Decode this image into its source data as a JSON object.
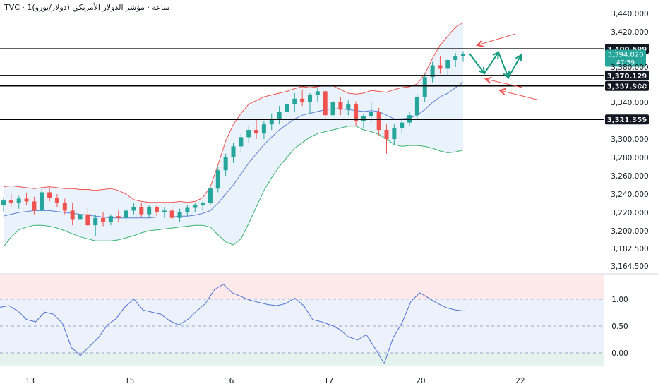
{
  "header": {
    "title": "TVC · 1ساعة · مؤشر الدولار الأمريكي (دولار/يورو)"
  },
  "colors": {
    "up": "#26a69a",
    "down": "#ef5350",
    "upper_band": "#ef5350",
    "mid_band": "#5b7fd6",
    "lower_band": "#39b46e",
    "band_fill": "#eaf2fc",
    "level_line": "#000000",
    "arrow_green": "#159b7f",
    "arrow_red": "#ef5350",
    "osc_line": "#4a6fd1"
  },
  "chart_data": [
    {
      "type": "candlestick",
      "title": "",
      "ylim": [
        3164.5,
        3440
      ],
      "y_ticks": [
        "3,440.000",
        "3,420.000",
        "3,380.000",
        "3,360.000",
        "3,340.000",
        "3,320.000",
        "3,300.000",
        "3,280.000",
        "3,260.000",
        "3,240.000",
        "3,220.000",
        "3,200.000",
        "3,182.500",
        "3,164.500"
      ],
      "x_tick_labels": [
        {
          "label": "13",
          "index": 3
        },
        {
          "label": "15",
          "index": 16
        },
        {
          "label": "16",
          "index": 29
        },
        {
          "label": "17",
          "index": 42
        },
        {
          "label": "20",
          "index": 54
        },
        {
          "label": "22",
          "index": 67
        }
      ],
      "levels": [
        {
          "value": 3400.699,
          "label": "3,400.699"
        },
        {
          "value": 3370.129,
          "label": "3,370.129"
        },
        {
          "value": 3357.9,
          "label": "3,357.900"
        },
        {
          "value": 3321.359,
          "label": "3,321.359"
        }
      ],
      "current_price": {
        "value": 3394.82,
        "label": "3,394.820",
        "countdown": "47:59"
      },
      "candles": [
        [
          3228,
          3236,
          3220,
          3233
        ],
        [
          3233,
          3240,
          3226,
          3230
        ],
        [
          3230,
          3238,
          3224,
          3235
        ],
        [
          3235,
          3241,
          3228,
          3232
        ],
        [
          3232,
          3237,
          3218,
          3222
        ],
        [
          3222,
          3246,
          3220,
          3242
        ],
        [
          3242,
          3248,
          3232,
          3236
        ],
        [
          3236,
          3240,
          3226,
          3230
        ],
        [
          3230,
          3235,
          3218,
          3222
        ],
        [
          3222,
          3230,
          3206,
          3212
        ],
        [
          3212,
          3222,
          3200,
          3218
        ],
        [
          3218,
          3226,
          3205,
          3206
        ],
        [
          3206,
          3218,
          3195,
          3214
        ],
        [
          3214,
          3220,
          3205,
          3210
        ],
        [
          3210,
          3218,
          3206,
          3216
        ],
        [
          3216,
          3222,
          3210,
          3214
        ],
        [
          3214,
          3226,
          3210,
          3222
        ],
        [
          3222,
          3230,
          3218,
          3226
        ],
        [
          3226,
          3230,
          3215,
          3218
        ],
        [
          3218,
          3228,
          3214,
          3226
        ],
        [
          3226,
          3228,
          3216,
          3220
        ],
        [
          3220,
          3226,
          3214,
          3222
        ],
        [
          3222,
          3226,
          3212,
          3214
        ],
        [
          3214,
          3224,
          3210,
          3220
        ],
        [
          3220,
          3228,
          3216,
          3225
        ],
        [
          3225,
          3230,
          3220,
          3228
        ],
        [
          3228,
          3232,
          3222,
          3230
        ],
        [
          3230,
          3248,
          3228,
          3246
        ],
        [
          3246,
          3270,
          3242,
          3266
        ],
        [
          3266,
          3284,
          3260,
          3280
        ],
        [
          3280,
          3296,
          3274,
          3292
        ],
        [
          3292,
          3306,
          3286,
          3302
        ],
        [
          3302,
          3315,
          3296,
          3310
        ],
        [
          3310,
          3322,
          3300,
          3306
        ],
        [
          3306,
          3320,
          3300,
          3316
        ],
        [
          3316,
          3328,
          3310,
          3322
        ],
        [
          3322,
          3336,
          3316,
          3330
        ],
        [
          3330,
          3344,
          3324,
          3338
        ],
        [
          3338,
          3350,
          3330,
          3344
        ],
        [
          3344,
          3354,
          3336,
          3340
        ],
        [
          3340,
          3350,
          3328,
          3348
        ],
        [
          3348,
          3356,
          3340,
          3352
        ],
        [
          3352,
          3354,
          3322,
          3326
        ],
        [
          3326,
          3344,
          3320,
          3340
        ],
        [
          3340,
          3346,
          3326,
          3332
        ],
        [
          3332,
          3342,
          3326,
          3338
        ],
        [
          3338,
          3341,
          3314,
          3320
        ],
        [
          3320,
          3328,
          3312,
          3325
        ],
        [
          3325,
          3340,
          3318,
          3330
        ],
        [
          3330,
          3334,
          3304,
          3310
        ],
        [
          3310,
          3316,
          3284,
          3300
        ],
        [
          3300,
          3316,
          3294,
          3312
        ],
        [
          3312,
          3322,
          3306,
          3318
        ],
        [
          3318,
          3330,
          3314,
          3326
        ],
        [
          3326,
          3348,
          3322,
          3346
        ],
        [
          3346,
          3372,
          3340,
          3368
        ],
        [
          3368,
          3386,
          3362,
          3382
        ],
        [
          3382,
          3392,
          3372,
          3378
        ],
        [
          3378,
          3390,
          3370,
          3388
        ],
        [
          3388,
          3396,
          3380,
          3392
        ],
        [
          3392,
          3398,
          3386,
          3395
        ]
      ],
      "bands": {
        "upper": [
          3248,
          3249,
          3248,
          3247,
          3246,
          3247,
          3248,
          3247,
          3246,
          3246,
          3245,
          3245,
          3244,
          3245,
          3246,
          3244,
          3240,
          3234,
          3232,
          3231,
          3231,
          3231,
          3231,
          3232,
          3231,
          3232,
          3236,
          3248,
          3272,
          3298,
          3316,
          3328,
          3338,
          3342,
          3346,
          3348,
          3350,
          3352,
          3355,
          3357,
          3356,
          3357,
          3359,
          3358,
          3354,
          3350,
          3349,
          3350,
          3353,
          3352,
          3351,
          3354,
          3356,
          3357,
          3360,
          3372,
          3390,
          3405,
          3415,
          3425,
          3430
        ],
        "middle": [
          3216,
          3218,
          3220,
          3221,
          3222,
          3222,
          3222,
          3221,
          3220,
          3219,
          3218,
          3217,
          3216,
          3215,
          3214,
          3214,
          3214,
          3214,
          3214,
          3214,
          3215,
          3215,
          3215,
          3216,
          3216,
          3217,
          3219,
          3222,
          3230,
          3240,
          3250,
          3262,
          3274,
          3284,
          3294,
          3302,
          3310,
          3316,
          3322,
          3326,
          3328,
          3330,
          3332,
          3333,
          3333,
          3332,
          3331,
          3330,
          3331,
          3330,
          3326,
          3322,
          3322,
          3323,
          3326,
          3332,
          3340,
          3346,
          3350,
          3356,
          3362
        ],
        "lower": [
          3184,
          3194,
          3201,
          3204,
          3206,
          3206,
          3205,
          3203,
          3200,
          3197,
          3194,
          3192,
          3190,
          3190,
          3190,
          3191,
          3193,
          3195,
          3198,
          3200,
          3201,
          3202,
          3203,
          3204,
          3205,
          3206,
          3206,
          3204,
          3196,
          3189,
          3186,
          3192,
          3208,
          3226,
          3244,
          3258,
          3270,
          3280,
          3290,
          3296,
          3302,
          3306,
          3308,
          3310,
          3312,
          3314,
          3314,
          3310,
          3308,
          3305,
          3300,
          3294,
          3292,
          3293,
          3293,
          3292,
          3290,
          3287,
          3285,
          3286,
          3288
        ]
      }
    },
    {
      "type": "line",
      "title": "",
      "ylim": [
        -0.25,
        1.45
      ],
      "y_ticks": [
        "1.00",
        "0.50",
        "0.00"
      ],
      "zones": [
        {
          "from": 1.0,
          "to": 1.45,
          "color": "#fde8ea"
        },
        {
          "from": 0.0,
          "to": 1.0,
          "color": "#ecf1fb"
        },
        {
          "from": -0.25,
          "to": 0.0,
          "color": "#e5f3ee"
        }
      ],
      "values": [
        0.85,
        0.88,
        0.78,
        0.62,
        0.58,
        0.76,
        0.72,
        0.55,
        0.1,
        -0.05,
        0.12,
        0.28,
        0.52,
        0.64,
        0.86,
        1.0,
        0.8,
        0.76,
        0.72,
        0.6,
        0.52,
        0.62,
        0.78,
        0.92,
        1.18,
        1.28,
        1.12,
        1.05,
        0.98,
        0.94,
        0.9,
        0.88,
        0.92,
        1.02,
        0.88,
        0.62,
        0.58,
        0.52,
        0.44,
        0.3,
        0.24,
        0.34,
        0.08,
        -0.2,
        0.28,
        0.56,
        0.96,
        1.12,
        1.02,
        0.92,
        0.84,
        0.8,
        0.78
      ]
    }
  ]
}
